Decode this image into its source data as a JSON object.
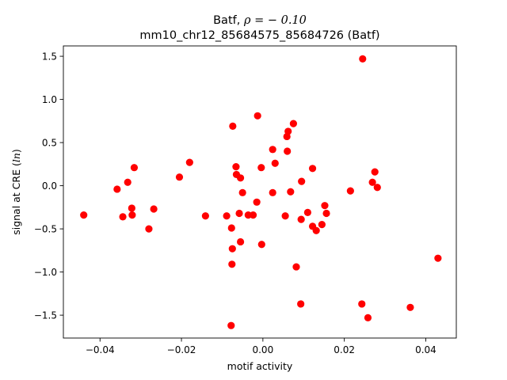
{
  "chart_data": {
    "type": "scatter",
    "title_line1_prefix": "Batf, ",
    "title_line1_math": "ρ = − 0.10",
    "title_line2": "mm10_chr12_85684575_85684726 (Batf)",
    "xlabel": "motif activity",
    "ylabel": "signal at CRE (ln)",
    "ylabel_prefix": "signal at CRE (",
    "ylabel_math": "ln",
    "ylabel_suffix": ")",
    "xlim": [
      -0.049,
      0.0475
    ],
    "ylim": [
      -1.765,
      1.62
    ],
    "xticks": [
      -0.04,
      -0.02,
      0.0,
      0.02,
      0.04
    ],
    "xtick_labels": [
      "−0.04",
      "−0.02",
      "0.00",
      "0.02",
      "0.04"
    ],
    "yticks": [
      -1.5,
      -1.0,
      -0.5,
      0.0,
      0.5,
      1.0,
      1.5
    ],
    "ytick_labels": [
      "−1.5",
      "−1.0",
      "−0.5",
      "0.0",
      "0.5",
      "1.0",
      "1.5"
    ],
    "grid": false,
    "marker_color": "#ff0000",
    "points": [
      {
        "x": -0.044,
        "y": -0.34
      },
      {
        "x": -0.0358,
        "y": -0.04
      },
      {
        "x": -0.0344,
        "y": -0.36
      },
      {
        "x": -0.0332,
        "y": 0.04
      },
      {
        "x": -0.0322,
        "y": -0.26
      },
      {
        "x": -0.0321,
        "y": -0.34
      },
      {
        "x": -0.0316,
        "y": 0.21
      },
      {
        "x": -0.028,
        "y": -0.5
      },
      {
        "x": -0.0268,
        "y": -0.27
      },
      {
        "x": -0.0205,
        "y": 0.1
      },
      {
        "x": -0.018,
        "y": 0.27
      },
      {
        "x": -0.0141,
        "y": -0.35
      },
      {
        "x": -0.0089,
        "y": -0.35
      },
      {
        "x": -0.0077,
        "y": -0.49
      },
      {
        "x": -0.0076,
        "y": -0.91
      },
      {
        "x": -0.0075,
        "y": -0.73
      },
      {
        "x": -0.0074,
        "y": 0.69
      },
      {
        "x": -0.0078,
        "y": -1.62
      },
      {
        "x": -0.0066,
        "y": 0.22
      },
      {
        "x": -0.0065,
        "y": 0.13
      },
      {
        "x": -0.0058,
        "y": -0.32
      },
      {
        "x": -0.0055,
        "y": 0.09
      },
      {
        "x": -0.0055,
        "y": -0.65
      },
      {
        "x": -0.005,
        "y": -0.08
      },
      {
        "x": -0.0036,
        "y": -0.34
      },
      {
        "x": -0.0024,
        "y": -0.34
      },
      {
        "x": -0.0015,
        "y": -0.19
      },
      {
        "x": -0.0013,
        "y": 0.81
      },
      {
        "x": -0.0004,
        "y": 0.21
      },
      {
        "x": -0.0003,
        "y": -0.68
      },
      {
        "x": 0.0024,
        "y": -0.08
      },
      {
        "x": 0.0024,
        "y": 0.42
      },
      {
        "x": 0.003,
        "y": 0.26
      },
      {
        "x": 0.0055,
        "y": -0.35
      },
      {
        "x": 0.0059,
        "y": 0.57
      },
      {
        "x": 0.006,
        "y": 0.4
      },
      {
        "x": 0.0062,
        "y": 0.63
      },
      {
        "x": 0.0068,
        "y": -0.07
      },
      {
        "x": 0.0075,
        "y": 0.72
      },
      {
        "x": 0.0082,
        "y": -0.94
      },
      {
        "x": 0.0093,
        "y": -1.37
      },
      {
        "x": 0.0094,
        "y": -0.39
      },
      {
        "x": 0.0095,
        "y": 0.05
      },
      {
        "x": 0.011,
        "y": -0.31
      },
      {
        "x": 0.0122,
        "y": -0.47
      },
      {
        "x": 0.0122,
        "y": 0.2
      },
      {
        "x": 0.0131,
        "y": -0.52
      },
      {
        "x": 0.0145,
        "y": -0.45
      },
      {
        "x": 0.0152,
        "y": -0.23
      },
      {
        "x": 0.0156,
        "y": -0.32
      },
      {
        "x": 0.0215,
        "y": -0.06
      },
      {
        "x": 0.0243,
        "y": -1.37
      },
      {
        "x": 0.0245,
        "y": 1.47
      },
      {
        "x": 0.0258,
        "y": -1.53
      },
      {
        "x": 0.0269,
        "y": 0.04
      },
      {
        "x": 0.0275,
        "y": 0.16
      },
      {
        "x": 0.0281,
        "y": -0.02
      },
      {
        "x": 0.0362,
        "y": -1.41
      },
      {
        "x": 0.043,
        "y": -0.84
      }
    ]
  }
}
